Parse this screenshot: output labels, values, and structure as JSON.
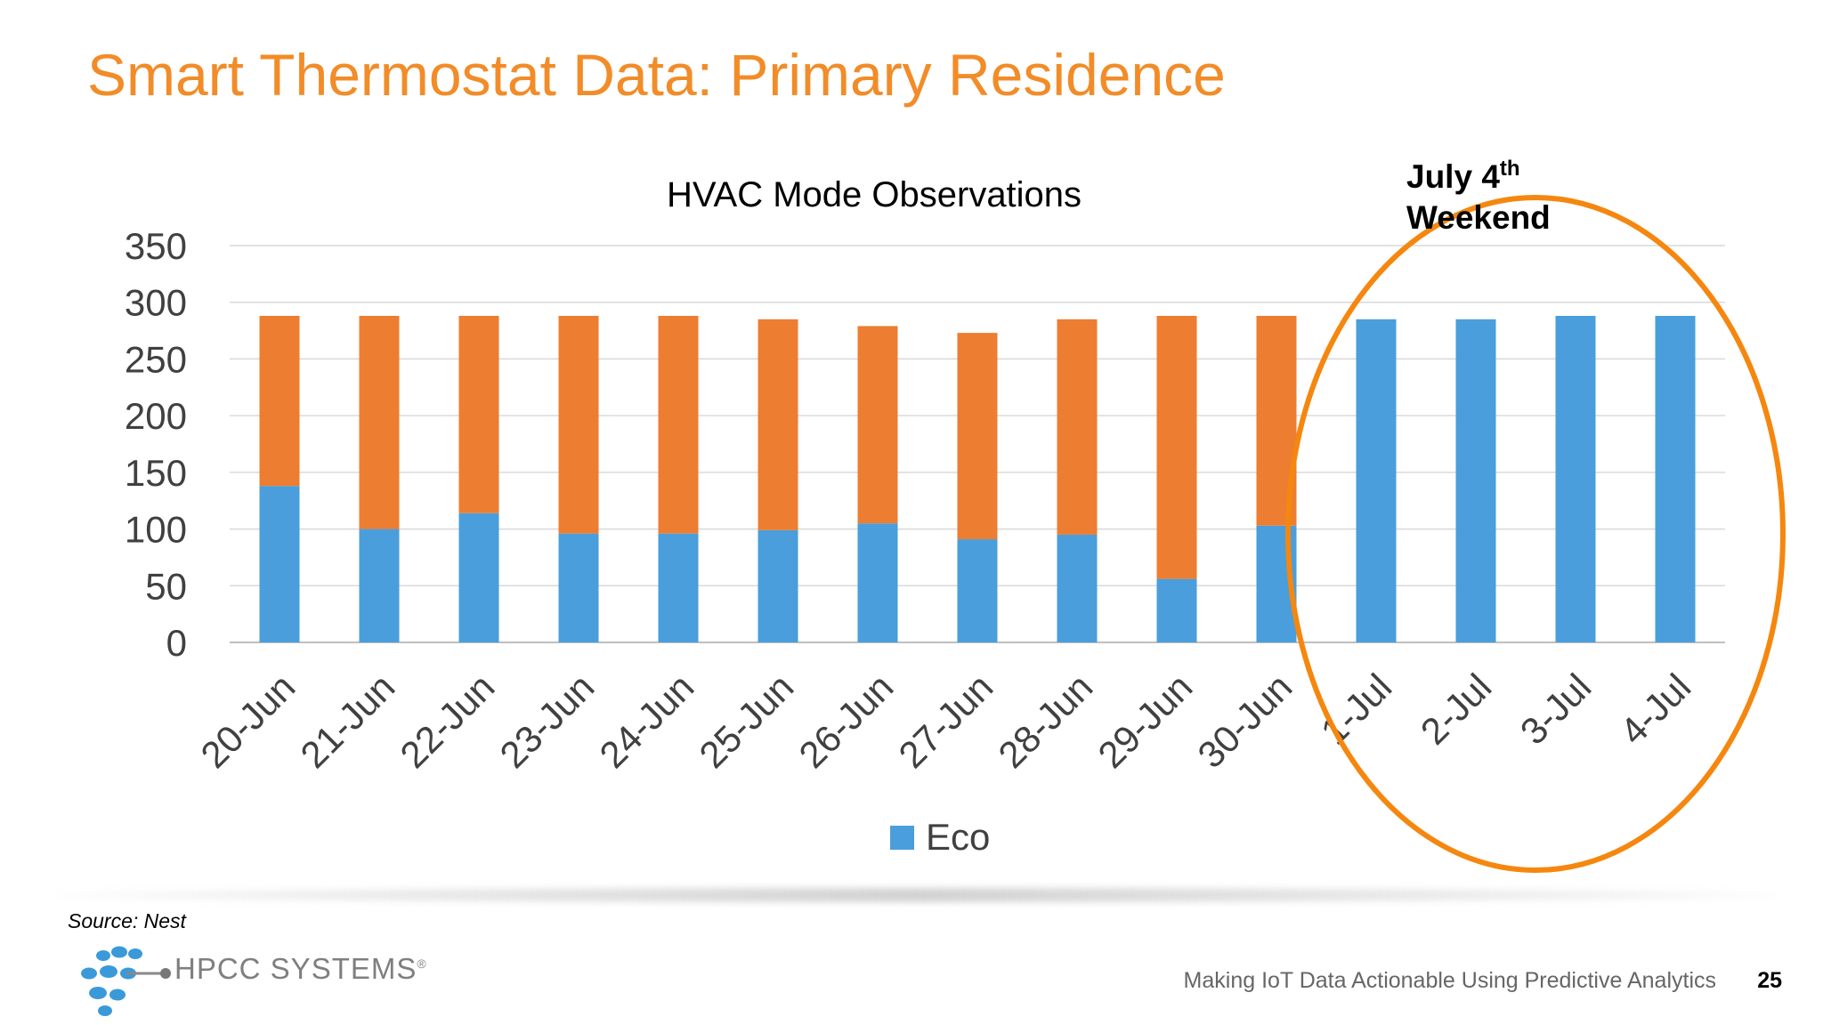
{
  "slide": {
    "title": "Smart Thermostat Data: Primary Residence",
    "source": "Source: Nest",
    "footer": "Making IoT Data Actionable Using Predictive Analytics",
    "page_number": "25",
    "logo_text": "HPCC SYSTEMS",
    "logo_mark": "®"
  },
  "annotation": {
    "line1_main": "July 4",
    "line1_sup": "th",
    "line2": "Weekend",
    "color": "#f5870f"
  },
  "chart_data": {
    "type": "bar",
    "stacked": true,
    "title": "HVAC Mode Observations",
    "xlabel": "",
    "ylabel": "",
    "ylim": [
      0,
      350
    ],
    "yticks": [
      0,
      50,
      100,
      150,
      200,
      250,
      300,
      350
    ],
    "grid": true,
    "legend_position": "bottom",
    "categories": [
      "20-Jun",
      "21-Jun",
      "22-Jun",
      "23-Jun",
      "24-Jun",
      "25-Jun",
      "26-Jun",
      "27-Jun",
      "28-Jun",
      "29-Jun",
      "30-Jun",
      "1-Jul",
      "2-Jul",
      "3-Jul",
      "4-Jul"
    ],
    "series": [
      {
        "name": "Eco",
        "color": "#4a9edb",
        "show_in_legend": true,
        "values": [
          138,
          100,
          114,
          96,
          96,
          99,
          105,
          91,
          95,
          56,
          103,
          285,
          285,
          288,
          288
        ]
      },
      {
        "name": "",
        "color": "#ed7d31",
        "show_in_legend": false,
        "values": [
          150,
          188,
          174,
          192,
          192,
          186,
          174,
          182,
          190,
          232,
          185,
          0,
          0,
          0,
          0
        ]
      }
    ]
  }
}
